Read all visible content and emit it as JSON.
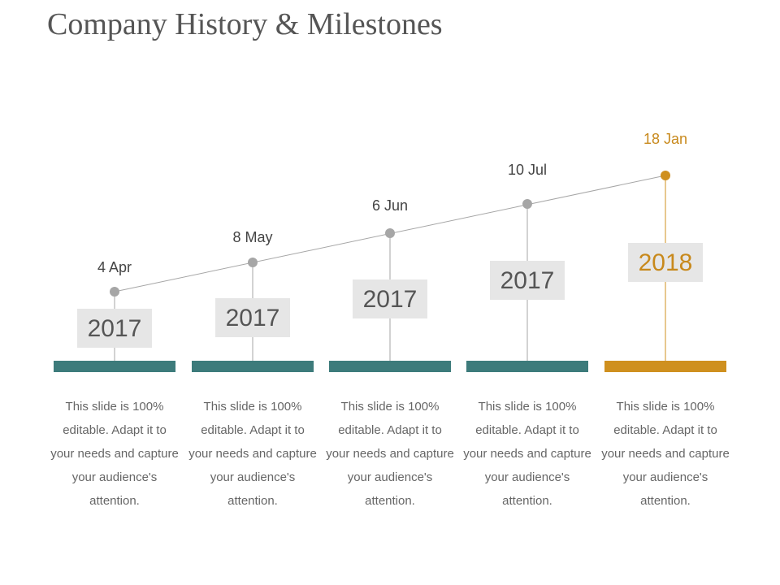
{
  "title": "Company History & Milestones",
  "colors": {
    "teal": "#3d7b7b",
    "gold": "#cf901f",
    "gold_text": "#c8891c",
    "grey": "#a6a6a6"
  },
  "milestones": [
    {
      "date": "4 Apr",
      "year": "2017",
      "text": "This slide is 100% editable. Adapt it to your needs and capture your audience's attention.",
      "highlight": false
    },
    {
      "date": "8 May",
      "year": "2017",
      "text": "This slide is 100% editable. Adapt it to your needs and capture your audience's attention.",
      "highlight": false
    },
    {
      "date": "6 Jun",
      "year": "2017",
      "text": "This slide is 100% editable. Adapt it to your needs and capture your audience's attention.",
      "highlight": false
    },
    {
      "date": "10 Jul",
      "year": "2017",
      "text": "This slide is 100% editable. Adapt it to your needs and capture your audience's attention.",
      "highlight": false
    },
    {
      "date": "18 Jan",
      "year": "2018",
      "text": "This slide is 100% editable. Adapt it to your needs and capture your audience's attention.",
      "highlight": true
    }
  ]
}
